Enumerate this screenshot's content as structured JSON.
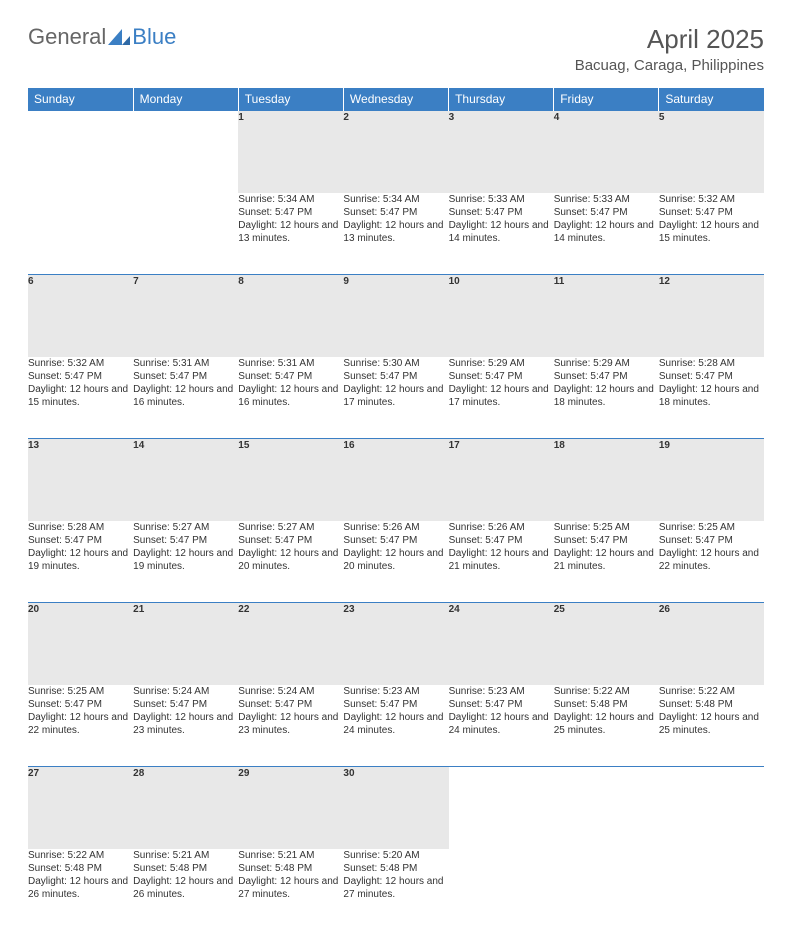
{
  "brand": {
    "part1": "General",
    "part2": "Blue"
  },
  "title": "April 2025",
  "location": "Bacuag, Caraga, Philippines",
  "colors": {
    "header_bg": "#3b7fc4",
    "header_text": "#ffffff",
    "daynum_bg": "#e8e8e8",
    "text": "#333333",
    "border": "#3b7fc4"
  },
  "weekdays": [
    "Sunday",
    "Monday",
    "Tuesday",
    "Wednesday",
    "Thursday",
    "Friday",
    "Saturday"
  ],
  "weeks": [
    [
      null,
      null,
      {
        "n": "1",
        "sr": "Sunrise: 5:34 AM",
        "ss": "Sunset: 5:47 PM",
        "dl": "Daylight: 12 hours and 13 minutes."
      },
      {
        "n": "2",
        "sr": "Sunrise: 5:34 AM",
        "ss": "Sunset: 5:47 PM",
        "dl": "Daylight: 12 hours and 13 minutes."
      },
      {
        "n": "3",
        "sr": "Sunrise: 5:33 AM",
        "ss": "Sunset: 5:47 PM",
        "dl": "Daylight: 12 hours and 14 minutes."
      },
      {
        "n": "4",
        "sr": "Sunrise: 5:33 AM",
        "ss": "Sunset: 5:47 PM",
        "dl": "Daylight: 12 hours and 14 minutes."
      },
      {
        "n": "5",
        "sr": "Sunrise: 5:32 AM",
        "ss": "Sunset: 5:47 PM",
        "dl": "Daylight: 12 hours and 15 minutes."
      }
    ],
    [
      {
        "n": "6",
        "sr": "Sunrise: 5:32 AM",
        "ss": "Sunset: 5:47 PM",
        "dl": "Daylight: 12 hours and 15 minutes."
      },
      {
        "n": "7",
        "sr": "Sunrise: 5:31 AM",
        "ss": "Sunset: 5:47 PM",
        "dl": "Daylight: 12 hours and 16 minutes."
      },
      {
        "n": "8",
        "sr": "Sunrise: 5:31 AM",
        "ss": "Sunset: 5:47 PM",
        "dl": "Daylight: 12 hours and 16 minutes."
      },
      {
        "n": "9",
        "sr": "Sunrise: 5:30 AM",
        "ss": "Sunset: 5:47 PM",
        "dl": "Daylight: 12 hours and 17 minutes."
      },
      {
        "n": "10",
        "sr": "Sunrise: 5:29 AM",
        "ss": "Sunset: 5:47 PM",
        "dl": "Daylight: 12 hours and 17 minutes."
      },
      {
        "n": "11",
        "sr": "Sunrise: 5:29 AM",
        "ss": "Sunset: 5:47 PM",
        "dl": "Daylight: 12 hours and 18 minutes."
      },
      {
        "n": "12",
        "sr": "Sunrise: 5:28 AM",
        "ss": "Sunset: 5:47 PM",
        "dl": "Daylight: 12 hours and 18 minutes."
      }
    ],
    [
      {
        "n": "13",
        "sr": "Sunrise: 5:28 AM",
        "ss": "Sunset: 5:47 PM",
        "dl": "Daylight: 12 hours and 19 minutes."
      },
      {
        "n": "14",
        "sr": "Sunrise: 5:27 AM",
        "ss": "Sunset: 5:47 PM",
        "dl": "Daylight: 12 hours and 19 minutes."
      },
      {
        "n": "15",
        "sr": "Sunrise: 5:27 AM",
        "ss": "Sunset: 5:47 PM",
        "dl": "Daylight: 12 hours and 20 minutes."
      },
      {
        "n": "16",
        "sr": "Sunrise: 5:26 AM",
        "ss": "Sunset: 5:47 PM",
        "dl": "Daylight: 12 hours and 20 minutes."
      },
      {
        "n": "17",
        "sr": "Sunrise: 5:26 AM",
        "ss": "Sunset: 5:47 PM",
        "dl": "Daylight: 12 hours and 21 minutes."
      },
      {
        "n": "18",
        "sr": "Sunrise: 5:25 AM",
        "ss": "Sunset: 5:47 PM",
        "dl": "Daylight: 12 hours and 21 minutes."
      },
      {
        "n": "19",
        "sr": "Sunrise: 5:25 AM",
        "ss": "Sunset: 5:47 PM",
        "dl": "Daylight: 12 hours and 22 minutes."
      }
    ],
    [
      {
        "n": "20",
        "sr": "Sunrise: 5:25 AM",
        "ss": "Sunset: 5:47 PM",
        "dl": "Daylight: 12 hours and 22 minutes."
      },
      {
        "n": "21",
        "sr": "Sunrise: 5:24 AM",
        "ss": "Sunset: 5:47 PM",
        "dl": "Daylight: 12 hours and 23 minutes."
      },
      {
        "n": "22",
        "sr": "Sunrise: 5:24 AM",
        "ss": "Sunset: 5:47 PM",
        "dl": "Daylight: 12 hours and 23 minutes."
      },
      {
        "n": "23",
        "sr": "Sunrise: 5:23 AM",
        "ss": "Sunset: 5:47 PM",
        "dl": "Daylight: 12 hours and 24 minutes."
      },
      {
        "n": "24",
        "sr": "Sunrise: 5:23 AM",
        "ss": "Sunset: 5:47 PM",
        "dl": "Daylight: 12 hours and 24 minutes."
      },
      {
        "n": "25",
        "sr": "Sunrise: 5:22 AM",
        "ss": "Sunset: 5:48 PM",
        "dl": "Daylight: 12 hours and 25 minutes."
      },
      {
        "n": "26",
        "sr": "Sunrise: 5:22 AM",
        "ss": "Sunset: 5:48 PM",
        "dl": "Daylight: 12 hours and 25 minutes."
      }
    ],
    [
      {
        "n": "27",
        "sr": "Sunrise: 5:22 AM",
        "ss": "Sunset: 5:48 PM",
        "dl": "Daylight: 12 hours and 26 minutes."
      },
      {
        "n": "28",
        "sr": "Sunrise: 5:21 AM",
        "ss": "Sunset: 5:48 PM",
        "dl": "Daylight: 12 hours and 26 minutes."
      },
      {
        "n": "29",
        "sr": "Sunrise: 5:21 AM",
        "ss": "Sunset: 5:48 PM",
        "dl": "Daylight: 12 hours and 27 minutes."
      },
      {
        "n": "30",
        "sr": "Sunrise: 5:20 AM",
        "ss": "Sunset: 5:48 PM",
        "dl": "Daylight: 12 hours and 27 minutes."
      },
      null,
      null,
      null
    ]
  ]
}
